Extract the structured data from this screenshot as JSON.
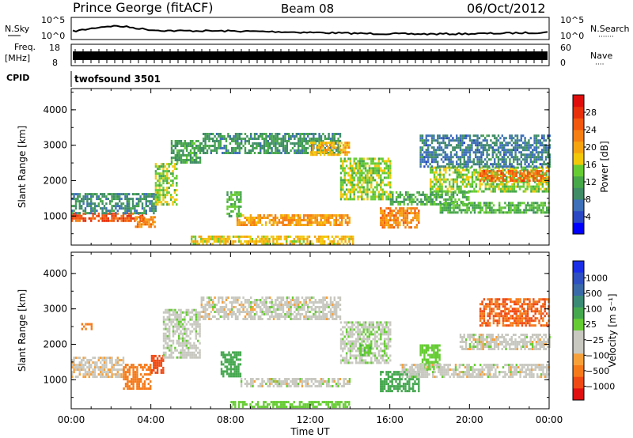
{
  "header": {
    "station": "Prince George (fitACF)",
    "beam": "Beam 08",
    "date": "06/Oct/2012"
  },
  "top_panels": {
    "nsky_label": "N.Sky",
    "nsky_ticks": [
      "10^5",
      "10^0"
    ],
    "nsearch_label": "N.Search",
    "nsearch_dots": "·······",
    "nsearch_ticks": [
      "10^5",
      "10^0"
    ],
    "freq_label": "Freq.",
    "freq_unit": "[MHz]",
    "freq_ticks": [
      "18",
      "8"
    ],
    "nave_label": "Nave",
    "nave_dots": "····",
    "nave_ticks": [
      "60",
      "0"
    ],
    "cpid_label": "CPID",
    "cpid_value": "twofsound 3501"
  },
  "colors": {
    "power": [
      "#0000ff",
      "#2b48c4",
      "#3d70b8",
      "#3f8c66",
      "#47a84a",
      "#66cc33",
      "#f2c80a",
      "#f5a40f",
      "#f57f13",
      "#f2580e",
      "#e8310b",
      "#e00d0d"
    ],
    "velocity": [
      "#e01010",
      "#f04a14",
      "#f57a1a",
      "#f6a03a",
      "#c8c8c0",
      "#c8c8c0",
      "#66cc33",
      "#45a84f",
      "#3a8a75",
      "#3a6aa8",
      "#2f50c0",
      "#1a2ee8"
    ]
  },
  "chart_data": [
    {
      "type": "heatmap",
      "title": "Power",
      "ylabel": "Slant Range [km]",
      "xlabel": "",
      "ylim": [
        180,
        4600
      ],
      "yticks": [
        "1000",
        "2000",
        "3000",
        "4000"
      ],
      "xlim_hours": [
        0,
        24
      ],
      "colorbar": {
        "label": "Power [dB]",
        "range": [
          0,
          32
        ],
        "ticks": [
          "4",
          "8",
          "12",
          "16",
          "20",
          "24",
          "28"
        ]
      },
      "regions": [
        {
          "t0": 0.0,
          "t1": 3.8,
          "r0": 850,
          "r1": 1100,
          "value": 26
        },
        {
          "t0": 0.0,
          "t1": 4.2,
          "r0": 1100,
          "r1": 1650,
          "value": 9
        },
        {
          "t0": 3.2,
          "t1": 4.2,
          "r0": 700,
          "r1": 1000,
          "value": 22
        },
        {
          "t0": 4.2,
          "t1": 5.3,
          "r0": 1300,
          "r1": 2500,
          "value": 15
        },
        {
          "t0": 5.0,
          "t1": 6.5,
          "r0": 2500,
          "r1": 3150,
          "value": 11
        },
        {
          "t0": 6.5,
          "t1": 13.5,
          "r0": 2750,
          "r1": 3350,
          "value": 10
        },
        {
          "t0": 12.0,
          "t1": 14.0,
          "r0": 2700,
          "r1": 3100,
          "value": 19
        },
        {
          "t0": 13.5,
          "t1": 16.0,
          "r0": 1500,
          "r1": 2650,
          "value": 15
        },
        {
          "t0": 8.3,
          "t1": 14.0,
          "r0": 750,
          "r1": 1050,
          "value": 21
        },
        {
          "t0": 7.8,
          "t1": 8.5,
          "r0": 1000,
          "r1": 1700,
          "value": 13
        },
        {
          "t0": 6.0,
          "t1": 14.2,
          "r0": 200,
          "r1": 450,
          "value": 18
        },
        {
          "t0": 15.5,
          "t1": 17.5,
          "r0": 700,
          "r1": 1250,
          "value": 22
        },
        {
          "t0": 16.0,
          "t1": 20.0,
          "r0": 1350,
          "r1": 1700,
          "value": 12
        },
        {
          "t0": 18.5,
          "t1": 24.0,
          "r0": 1100,
          "r1": 1400,
          "value": 13
        },
        {
          "t0": 18.0,
          "t1": 24.0,
          "r0": 1700,
          "r1": 2400,
          "value": 15
        },
        {
          "t0": 20.5,
          "t1": 24.0,
          "r0": 2000,
          "r1": 2300,
          "value": 24
        },
        {
          "t0": 17.5,
          "t1": 24.0,
          "r0": 2400,
          "r1": 3300,
          "value": 8
        }
      ]
    },
    {
      "type": "heatmap",
      "title": "Velocity",
      "ylabel": "Slant Range [km]",
      "xlabel": "Time UT",
      "ylim": [
        180,
        4600
      ],
      "yticks": [
        "1000",
        "2000",
        "3000",
        "4000"
      ],
      "xticks": [
        "00:00",
        "04:00",
        "08:00",
        "12:00",
        "16:00",
        "20:00",
        "00:00"
      ],
      "xlim_hours": [
        0,
        24
      ],
      "colorbar": {
        "label": "Velocity [m s⁻¹]",
        "ticks": [
          "1000",
          "500",
          "100",
          "25",
          "−25",
          "−100",
          "−500",
          "−1000"
        ]
      },
      "regions": [
        {
          "t0": 0.0,
          "t1": 2.6,
          "r0": 1050,
          "r1": 1650,
          "value": -10
        },
        {
          "t0": 2.6,
          "t1": 4.0,
          "r0": 750,
          "r1": 1450,
          "value": -400
        },
        {
          "t0": 4.0,
          "t1": 4.6,
          "r0": 1200,
          "r1": 1700,
          "value": -700
        },
        {
          "t0": 4.6,
          "t1": 6.5,
          "r0": 1650,
          "r1": 3000,
          "value": 5
        },
        {
          "t0": 6.5,
          "t1": 13.5,
          "r0": 2700,
          "r1": 3350,
          "value": 0
        },
        {
          "t0": 13.5,
          "t1": 16.0,
          "r0": 1500,
          "r1": 2650,
          "value": 10
        },
        {
          "t0": 14.5,
          "t1": 15.0,
          "r0": 1700,
          "r1": 2000,
          "value": 80
        },
        {
          "t0": 7.5,
          "t1": 8.5,
          "r0": 1100,
          "r1": 1800,
          "value": 150
        },
        {
          "t0": 8.5,
          "t1": 14.0,
          "r0": 800,
          "r1": 1050,
          "value": 0
        },
        {
          "t0": 8.0,
          "t1": 14.0,
          "r0": 200,
          "r1": 400,
          "value": 60
        },
        {
          "t0": 15.5,
          "t1": 17.5,
          "r0": 700,
          "r1": 1250,
          "value": 250
        },
        {
          "t0": 17.5,
          "t1": 18.5,
          "r0": 1300,
          "r1": 2000,
          "value": 60
        },
        {
          "t0": 16.5,
          "t1": 24.0,
          "r0": 1100,
          "r1": 1450,
          "value": 0
        },
        {
          "t0": 19.5,
          "t1": 24.0,
          "r0": 1850,
          "r1": 2300,
          "value": 0
        },
        {
          "t0": 20.5,
          "t1": 24.0,
          "r0": 2500,
          "r1": 3300,
          "value": -500
        },
        {
          "t0": 0.5,
          "t1": 1.0,
          "r0": 2400,
          "r1": 2600,
          "value": -300
        }
      ]
    }
  ]
}
